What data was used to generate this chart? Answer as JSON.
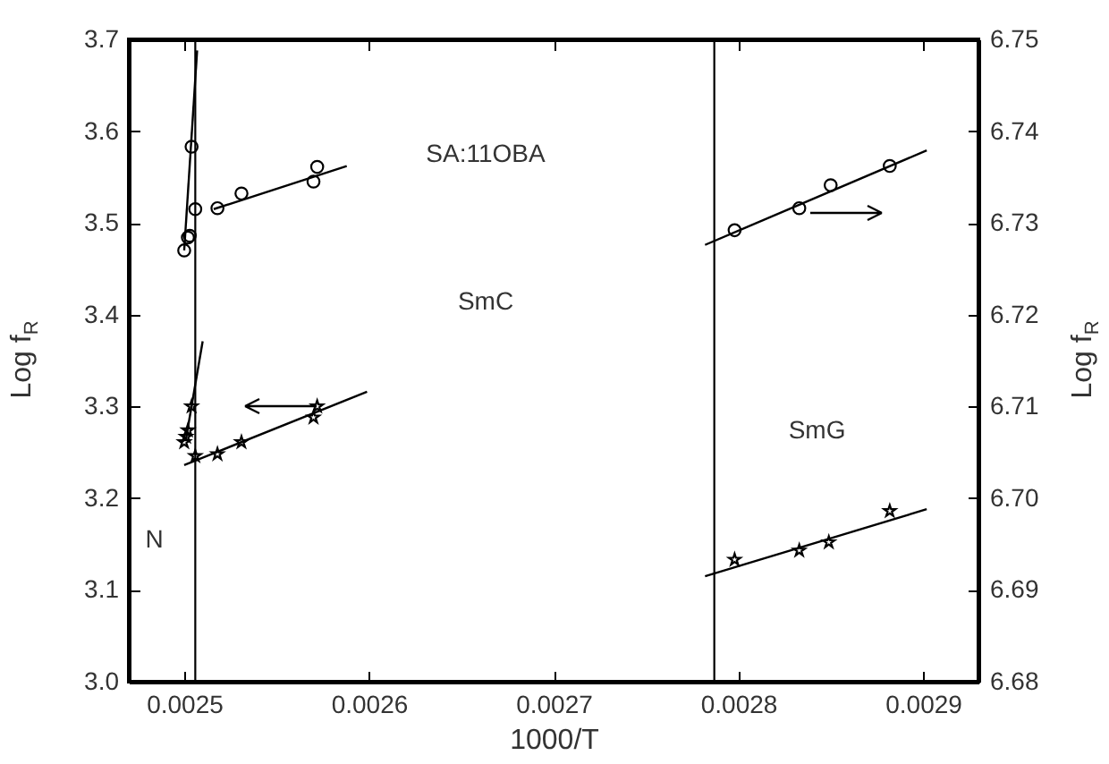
{
  "chart_data": {
    "type": "scatter",
    "xlabel": "1000/T",
    "ylabel": "Log f$_{R}$",
    "y2label": "Log f$_{R}$",
    "xlim": [
      0.00247,
      0.00293
    ],
    "xticks": [
      0.0025,
      0.0026,
      0.0027,
      0.0028,
      0.0029
    ],
    "ylim": [
      3.0,
      3.7
    ],
    "yticks": [
      {
        "value": 3.0,
        "label": "3.0"
      },
      3.1,
      3.2,
      3.3,
      3.4,
      3.5,
      3.6,
      3.7
    ],
    "y2lim": [
      6.68,
      6.75
    ],
    "y2ticks": [
      6.68,
      6.69,
      {
        "value": 6.7,
        "label": "6.70"
      },
      6.71,
      6.72,
      6.73,
      6.74,
      6.75
    ],
    "series": [
      {
        "marker": "circle",
        "color": "#000000",
        "x": [
          0.0025,
          0.002502,
          0.002503,
          0.002504,
          0.002506,
          0.002518,
          0.002531,
          0.00257,
          0.002572
        ],
        "values": [
          3.47,
          3.484,
          3.486,
          3.583,
          3.515,
          3.516,
          3.532,
          3.545,
          3.561
        ]
      },
      {
        "marker": "star",
        "color": "#000000",
        "x": [
          0.0025,
          0.002501,
          0.002502,
          0.002504,
          0.002506,
          0.002518,
          0.002531,
          0.00257,
          0.002572
        ],
        "values": [
          3.261,
          3.267,
          3.274,
          3.3,
          3.246,
          3.248,
          3.261,
          3.288,
          3.3
        ]
      },
      {
        "type": "line",
        "color": "#000000",
        "x": [
          0.0025,
          0.002507
        ],
        "values": [
          3.47,
          3.688
        ]
      },
      {
        "type": "line",
        "color": "#000000",
        "x": [
          0.002516,
          0.002588
        ],
        "values": [
          3.515,
          3.562
        ]
      },
      {
        "type": "line",
        "color": "#000000",
        "x": [
          0.002501,
          0.00251
        ],
        "values": [
          3.265,
          3.371
        ]
      },
      {
        "type": "line",
        "color": "#000000",
        "x": [
          0.0025,
          0.002599
        ],
        "values": [
          3.236,
          3.316
        ]
      },
      {
        "marker": "circle",
        "color": "#000000",
        "axis": "y2",
        "x": [
          0.002798,
          0.002833,
          0.00285,
          0.002882
        ],
        "values": [
          6.7292,
          6.7316,
          6.7341,
          6.7362
        ]
      },
      {
        "marker": "star",
        "color": "#000000",
        "axis": "y2",
        "x": [
          0.002798,
          0.002833,
          0.002849,
          0.002882
        ],
        "values": [
          6.6933,
          6.6943,
          6.6952,
          6.6986
        ]
      },
      {
        "type": "line",
        "color": "#000000",
        "axis": "y2",
        "x": [
          0.002782,
          0.002902
        ],
        "values": [
          6.7276,
          6.7379
        ]
      },
      {
        "type": "line",
        "color": "#000000",
        "axis": "y2",
        "x": [
          0.002782,
          0.002902
        ],
        "values": [
          6.6915,
          6.6988
        ]
      }
    ],
    "ref_lines": [
      {
        "axis": "x",
        "value": 0.002506,
        "color": "#000000"
      },
      {
        "axis": "x",
        "value": 0.002787,
        "color": "#000000"
      }
    ],
    "annotations": [
      "SA:11OBA",
      "SmC",
      "SmG",
      "N"
    ]
  }
}
